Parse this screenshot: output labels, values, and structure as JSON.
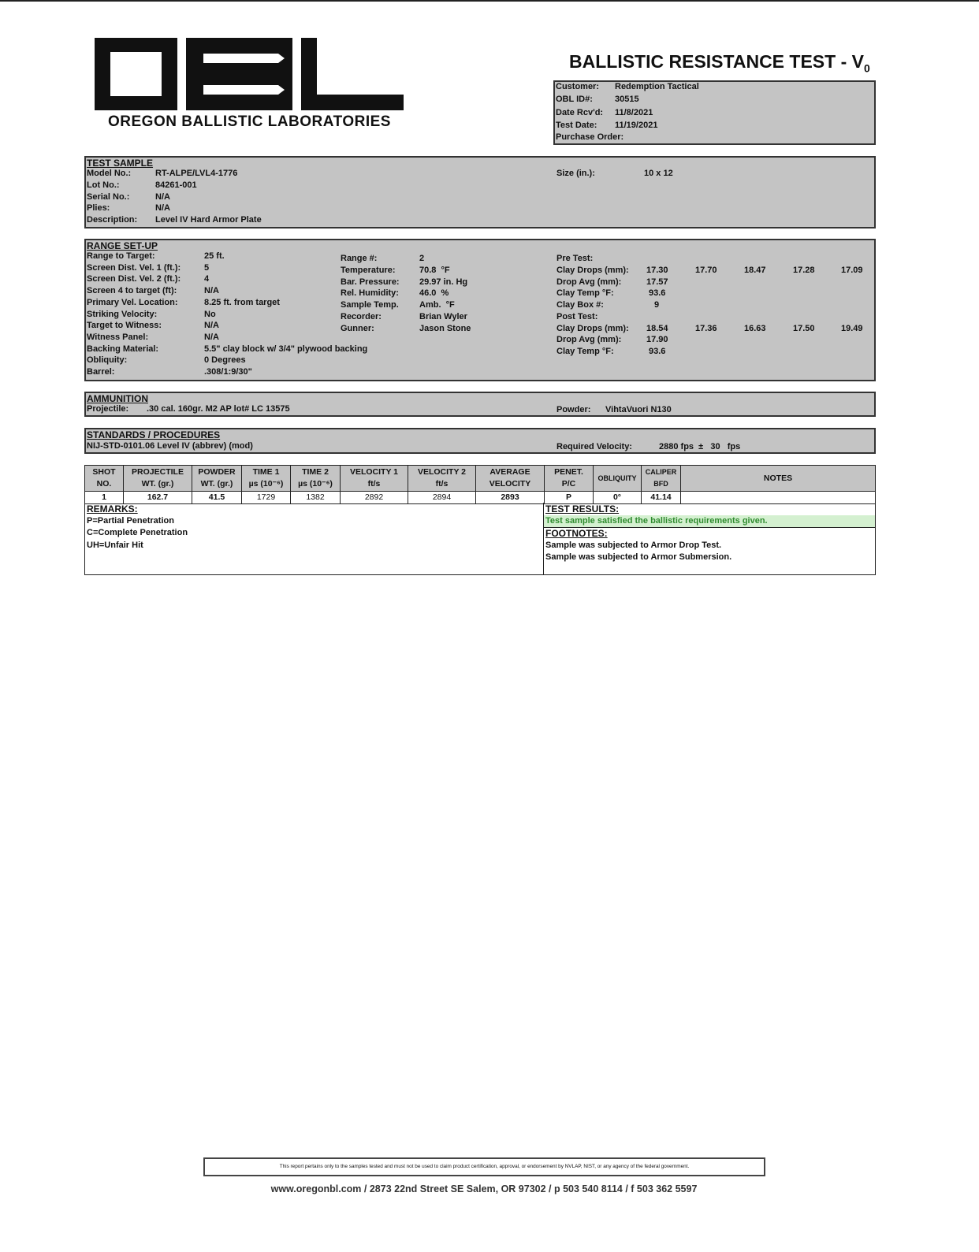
{
  "header": {
    "lab_name": "OREGON BALLISTIC LABORATORIES",
    "logo_text": "OBL",
    "title": "BALLISTIC RESISTANCE TEST - V",
    "title_sub": "0"
  },
  "info": [
    [
      "Customer:",
      "Redemption Tactical"
    ],
    [
      "OBL ID#:",
      "30515"
    ],
    [
      "Date Rcv'd:",
      "11/8/2021"
    ],
    [
      "Test Date:",
      "11/19/2021"
    ],
    [
      "Purchase Order:",
      ""
    ]
  ],
  "test_sample": {
    "heading": "TEST SAMPLE",
    "rows": [
      [
        "Model No.:",
        "RT-ALPE/LVL4-1776"
      ],
      [
        "Lot No.:",
        "84261-001"
      ],
      [
        "Serial No.:",
        "N/A"
      ],
      [
        "Plies:",
        "N/A"
      ],
      [
        "Description:",
        "Level IV Hard Armor Plate"
      ]
    ],
    "size_label": "Size (in.):",
    "size_value": "10 x 12"
  },
  "range": {
    "heading": "RANGE SET-UP",
    "left": [
      [
        "Range to Target:",
        "25 ft."
      ],
      [
        "Screen Dist. Vel. 1 (ft.):",
        "5"
      ],
      [
        "Screen Dist. Vel. 2 (ft.):",
        "4"
      ],
      [
        "Screen 4 to target (ft):",
        "N/A"
      ],
      [
        "Primary Vel. Location:",
        "8.25 ft. from target"
      ],
      [
        "Striking Velocity:",
        "No"
      ],
      [
        "Target to Witness:",
        "N/A"
      ],
      [
        "Witness Panel:",
        "N/A"
      ],
      [
        "Backing Material:",
        "5.5\" clay block w/ 3/4\" plywood backing"
      ],
      [
        "Obliquity:",
        "0 Degrees"
      ],
      [
        "Barrel:",
        ".308/1:9/30\""
      ]
    ],
    "mid": [
      [
        "Range #:",
        "2"
      ],
      [
        "Temperature:",
        "70.8  °F"
      ],
      [
        "Bar. Pressure:",
        "29.97 in. Hg"
      ],
      [
        "Rel. Humidity:",
        "46.0  %"
      ],
      [
        "Sample Temp.",
        "Amb.  °F"
      ],
      [
        "Recorder:",
        "Brian Wyler"
      ],
      [
        "Gunner:",
        "Jason Stone"
      ]
    ],
    "pre_label": "Pre Test:",
    "pre_drops_label": "Clay Drops (mm):",
    "pre_drops": [
      "17.30",
      "17.70",
      "18.47",
      "17.28",
      "17.09"
    ],
    "pre_avg_label": "Drop Avg (mm):",
    "pre_avg": "17.57",
    "pre_temp_label": "Clay Temp °F:",
    "pre_temp": "93.6",
    "box_label": "Clay Box #:",
    "box": "9",
    "post_label": "Post Test:",
    "post_drops_label": "Clay Drops (mm):",
    "post_drops": [
      "18.54",
      "17.36",
      "16.63",
      "17.50",
      "19.49"
    ],
    "post_avg_label": "Drop Avg (mm):",
    "post_avg": "17.90",
    "post_temp_label": "Clay Temp °F:",
    "post_temp": "93.6"
  },
  "ammo": {
    "heading": "AMMUNITION",
    "proj_label": "Projectile:",
    "proj": ".30 cal. 160gr. M2 AP lot# LC 13575",
    "powder_label": "Powder:",
    "powder": "VihtaVuori N130"
  },
  "standards": {
    "heading": "STANDARDS / PROCEDURES",
    "std": "NIJ-STD-0101.06 Level IV (abbrev) (mod)",
    "req_label": "Required Velocity:",
    "req": "2880 fps  ±   30   fps"
  },
  "table": {
    "headers": [
      [
        "SHOT",
        "NO."
      ],
      [
        "PROJECTILE",
        "WT. (gr.)"
      ],
      [
        "POWDER",
        "WT. (gr.)"
      ],
      [
        "TIME 1",
        "µs (10⁻⁶)"
      ],
      [
        "TIME 2",
        "µs (10⁻⁶)"
      ],
      [
        "VELOCITY 1",
        "ft/s"
      ],
      [
        "VELOCITY 2",
        "ft/s"
      ],
      [
        "AVERAGE",
        "VELOCITY"
      ],
      [
        "PENET.",
        "P/C"
      ],
      [
        "OBLIQUITY",
        ""
      ],
      [
        "CALIPER",
        "BFD"
      ],
      [
        "NOTES",
        ""
      ]
    ],
    "rows": [
      [
        "1",
        "162.7",
        "41.5",
        "1729",
        "1382",
        "2892",
        "2894",
        "2893",
        "P",
        "0°",
        "41.14",
        ""
      ]
    ]
  },
  "remarks": {
    "heading": "REMARKS:",
    "items": [
      "P=Partial Penetration",
      "C=Complete Penetration",
      "UH=Unfair Hit"
    ]
  },
  "results": {
    "heading": "TEST RESULTS:",
    "text": "Test sample satisfied the ballistic requirements given.",
    "color": "#2e8b2e",
    "bg": "#d4f0d0"
  },
  "footnotes": {
    "heading": "FOOTNOTES:",
    "items": [
      "Sample was subjected to Armor Drop Test.",
      "Sample was subjected to Armor Submersion."
    ]
  },
  "footer": {
    "disclaimer": "This report pertains only to the samples tested and must not be used to claim product certification, approval, or endorsement by NVLAP, NIST, or any agency of the federal government.",
    "address": "www.oregonbl.com / 2873 22nd Street SE Salem, OR 97302 / p 503 540 8114 / f 503 362 5597"
  }
}
